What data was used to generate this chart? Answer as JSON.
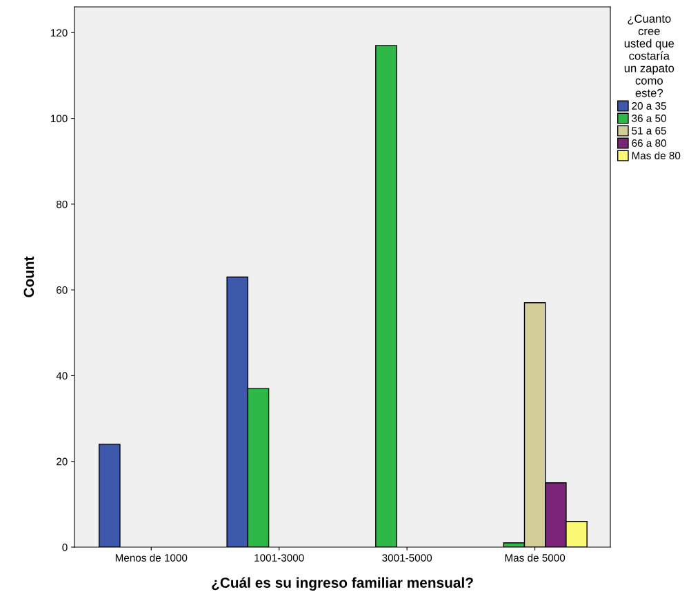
{
  "chart_data": {
    "type": "bar",
    "xlabel": "¿Cuál es su ingreso familiar mensual?",
    "ylabel": "Count",
    "legend_title": "¿Cuanto\ncree\nusted que\ncostaría\nun zapato\ncomo\neste?",
    "legend": "right",
    "categories": [
      "Menos de 1000",
      "1001-3000",
      "3001-5000",
      "Mas de 5000"
    ],
    "series": [
      {
        "name": "20 a 35",
        "color": "#3e58ac",
        "values": [
          24,
          63,
          null,
          null
        ]
      },
      {
        "name": "36 a 50",
        "color": "#2eb848",
        "values": [
          null,
          37,
          117,
          1
        ]
      },
      {
        "name": "51 a 65",
        "color": "#d3ce97",
        "values": [
          null,
          null,
          null,
          57
        ]
      },
      {
        "name": "66 a 80",
        "color": "#7b2478",
        "values": [
          null,
          null,
          null,
          15
        ]
      },
      {
        "name": "Mas de 80",
        "color": "#fbf873",
        "values": [
          null,
          null,
          null,
          6
        ]
      }
    ],
    "ylim": [
      0,
      126
    ],
    "yticks": [
      0,
      20,
      40,
      60,
      80,
      100,
      120
    ],
    "grid": false
  }
}
